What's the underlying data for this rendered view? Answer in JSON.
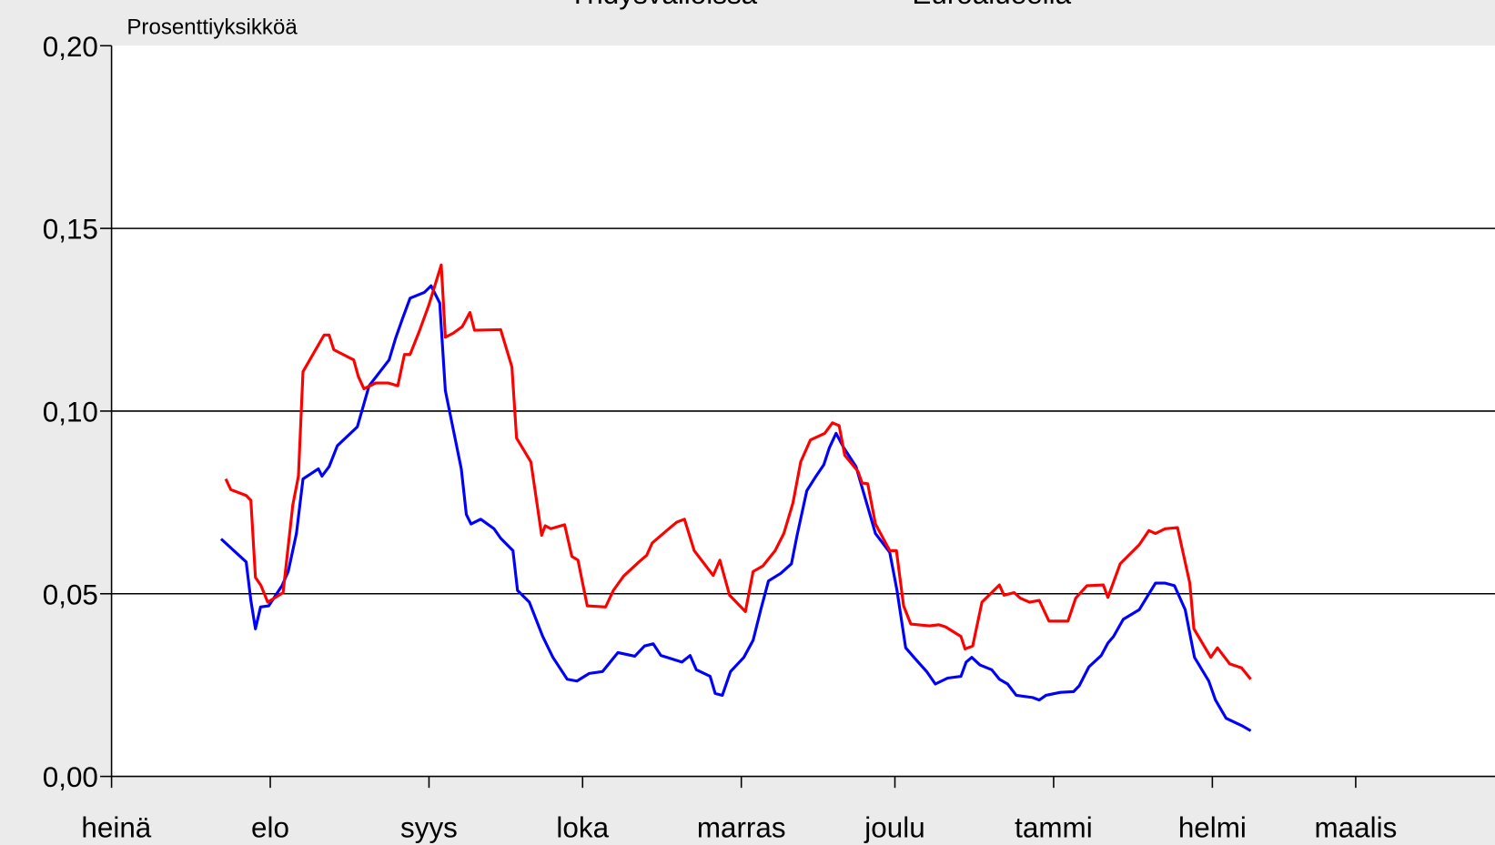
{
  "chart_data": {
    "type": "line",
    "y_axis_label": "Prosenttiyksikköä",
    "xlim": [
      0,
      270
    ],
    "xticks": [
      {
        "value": 0,
        "label": "heinä"
      },
      {
        "value": 31,
        "label": "elo"
      },
      {
        "value": 62,
        "label": "syys"
      },
      {
        "value": 92,
        "label": "loka"
      },
      {
        "value": 123,
        "label": "marras"
      },
      {
        "value": 153,
        "label": "joulu"
      },
      {
        "value": 184,
        "label": "tammi"
      },
      {
        "value": 215,
        "label": "helmi"
      },
      {
        "value": 243,
        "label": "maalis"
      }
    ],
    "ylim": [
      0,
      0.2
    ],
    "yticks": [
      {
        "value": 0,
        "label": "0,00"
      },
      {
        "value": 0.05,
        "label": "0,05"
      },
      {
        "value": 0.1,
        "label": "0,10"
      },
      {
        "value": 0.15,
        "label": "0,15"
      },
      {
        "value": 0.2,
        "label": "0,20"
      }
    ],
    "grid": true,
    "series": [
      {
        "name": "Yhdysvalloissa",
        "color": "#0000ff",
        "x": [
          21.4,
          26.3,
          27.2,
          28.1,
          29.1,
          30.7,
          33.3,
          34.5,
          36.1,
          37.4,
          40.4,
          41.1,
          42.5,
          44.1,
          48.0,
          50.3,
          54.2,
          55.5,
          56.8,
          58.3,
          61.1,
          62.4,
          64.1,
          65.2,
          68.3,
          69.3,
          70.2,
          72.1,
          74.7,
          76.0,
          78.4,
          79.3,
          81.6,
          84.2,
          86.2,
          89.0,
          90.9,
          93.3,
          95.9,
          97.4,
          98.9,
          102.2,
          104.1,
          105.8,
          107.3,
          111.4,
          113.0,
          114.2,
          116.9,
          117.9,
          119.3,
          120.9,
          123.5,
          125.3,
          126.8,
          128.3,
          130.7,
          132.8,
          133.9,
          135.8,
          137.6,
          139.1,
          140.2,
          141.5,
          143.0,
          145.4,
          147.7,
          149.2,
          152.0,
          153.4,
          155.1,
          157.2,
          159.2,
          160.9,
          163.3,
          165.9,
          166.9,
          168.0,
          169.6,
          171.9,
          173.4,
          175.0,
          176.7,
          179.9,
          181.2,
          182.5,
          185.3,
          187.9,
          189.0,
          190.9,
          193.3,
          194.6,
          195.7,
          197.6,
          200.7,
          203.9,
          205.8,
          207.6,
          209.7,
          211.5,
          214.3,
          215.6,
          217.7,
          220.9,
          222.5
        ],
        "values": [
          0.065,
          0.0587,
          0.0482,
          0.0404,
          0.0464,
          0.0467,
          0.0522,
          0.0561,
          0.0665,
          0.0814,
          0.0842,
          0.0822,
          0.0848,
          0.0905,
          0.0957,
          0.1069,
          0.114,
          0.12,
          0.1252,
          0.1309,
          0.1325,
          0.1343,
          0.1296,
          0.1056,
          0.0842,
          0.0717,
          0.0691,
          0.0704,
          0.0678,
          0.0652,
          0.0618,
          0.0509,
          0.0477,
          0.0383,
          0.0326,
          0.0266,
          0.0261,
          0.0282,
          0.0287,
          0.0313,
          0.0339,
          0.0329,
          0.0357,
          0.0363,
          0.0331,
          0.0313,
          0.0331,
          0.0292,
          0.0274,
          0.0227,
          0.0222,
          0.0287,
          0.0326,
          0.0373,
          0.0456,
          0.0535,
          0.0556,
          0.0582,
          0.066,
          0.0782,
          0.0822,
          0.0853,
          0.09,
          0.0939,
          0.09,
          0.0848,
          0.0738,
          0.0665,
          0.0613,
          0.0509,
          0.0352,
          0.0318,
          0.0287,
          0.0253,
          0.0269,
          0.0274,
          0.0313,
          0.0326,
          0.0305,
          0.0292,
          0.0266,
          0.0253,
          0.0222,
          0.0216,
          0.0209,
          0.0222,
          0.023,
          0.0232,
          0.0248,
          0.03,
          0.0331,
          0.0365,
          0.0383,
          0.043,
          0.0456,
          0.0529,
          0.0529,
          0.0522,
          0.0456,
          0.0326,
          0.0261,
          0.0209,
          0.0159,
          0.0138,
          0.0125
        ]
      },
      {
        "name": "Euroalueella",
        "color": "#ff0000",
        "x": [
          22.3,
          23.3,
          26.3,
          27.2,
          28.1,
          29.2,
          30.5,
          33.5,
          35.4,
          36.5,
          37.4,
          41.5,
          42.5,
          43.4,
          47.3,
          48.2,
          49.3,
          51.6,
          54.0,
          55.9,
          57.2,
          58.3,
          60.1,
          62.0,
          64.4,
          65.2,
          66.7,
          68.5,
          70.0,
          70.9,
          76.0,
          78.2,
          79.1,
          81.9,
          84.0,
          84.7,
          85.8,
          88.5,
          89.9,
          91.1,
          92.9,
          96.5,
          98.0,
          100.0,
          103.0,
          104.5,
          105.6,
          108.6,
          110.4,
          111.9,
          113.8,
          117.5,
          118.8,
          120.7,
          123.8,
          125.3,
          127.2,
          129.6,
          131.3,
          133.1,
          134.6,
          136.5,
          139.3,
          140.8,
          142.1,
          143.2,
          145.8,
          146.6,
          147.7,
          149.2,
          152.0,
          153.3,
          154.7,
          156.1,
          159.8,
          161.6,
          162.9,
          165.9,
          166.7,
          168.2,
          170.0,
          171.9,
          173.4,
          174.3,
          176.3,
          177.5,
          179.3,
          181.2,
          183.1,
          184.9,
          186.8,
          188.3,
          190.5,
          193.7,
          194.6,
          197.0,
          200.7,
          202.6,
          203.9,
          205.8,
          208.2,
          210.6,
          211.4,
          214.7,
          216.0,
          218.4,
          220.7,
          222.5
        ],
        "values": [
          0.0814,
          0.0785,
          0.0769,
          0.0756,
          0.0545,
          0.0522,
          0.0477,
          0.0503,
          0.0743,
          0.0822,
          0.1108,
          0.1208,
          0.1208,
          0.1168,
          0.114,
          0.1095,
          0.1061,
          0.1077,
          0.1077,
          0.1069,
          0.1155,
          0.1155,
          0.1218,
          0.1291,
          0.14,
          0.1202,
          0.1213,
          0.1231,
          0.127,
          0.1221,
          0.1223,
          0.1121,
          0.0926,
          0.0861,
          0.066,
          0.0686,
          0.0678,
          0.0689,
          0.0602,
          0.0592,
          0.0467,
          0.0464,
          0.0509,
          0.0548,
          0.0587,
          0.0605,
          0.0639,
          0.0675,
          0.0696,
          0.0704,
          0.0618,
          0.055,
          0.0592,
          0.0496,
          0.0451,
          0.0561,
          0.0576,
          0.0618,
          0.0665,
          0.0749,
          0.0861,
          0.0921,
          0.0939,
          0.0968,
          0.096,
          0.0879,
          0.0835,
          0.0803,
          0.0801,
          0.0691,
          0.0618,
          0.0618,
          0.0467,
          0.0417,
          0.0412,
          0.0415,
          0.0409,
          0.0383,
          0.0349,
          0.0357,
          0.0477,
          0.0503,
          0.0524,
          0.0496,
          0.0503,
          0.0488,
          0.0477,
          0.0482,
          0.0425,
          0.0425,
          0.0425,
          0.0488,
          0.0522,
          0.0524,
          0.049,
          0.0582,
          0.0634,
          0.0673,
          0.0665,
          0.0678,
          0.0681,
          0.0529,
          0.0404,
          0.0326,
          0.0352,
          0.0308,
          0.0297,
          0.0266
        ]
      }
    ]
  }
}
